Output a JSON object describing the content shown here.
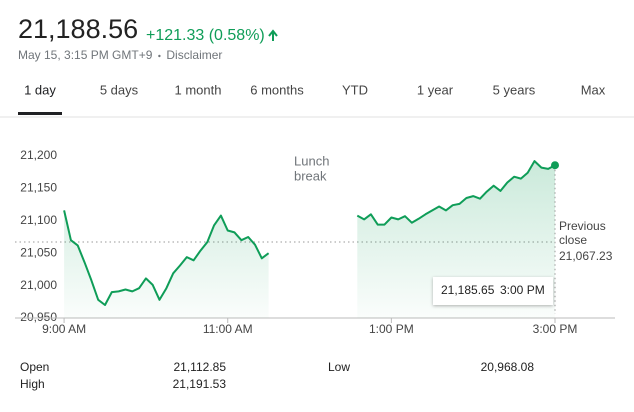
{
  "header": {
    "price": "21,188.56",
    "change": "+121.33 (0.58%)",
    "timestamp": "May 15, 3:15 PM GMT+9",
    "disclaimer": "Disclaimer"
  },
  "tabs": {
    "items": [
      "1 day",
      "5 days",
      "1 month",
      "6 months",
      "YTD",
      "1 year",
      "5 years",
      "Max"
    ],
    "active": 0
  },
  "chart_data": {
    "type": "line",
    "color": "#0f9d58",
    "x": [
      540,
      545,
      550,
      555,
      560,
      565,
      570,
      575,
      580,
      585,
      590,
      595,
      600,
      605,
      610,
      615,
      620,
      625,
      630,
      635,
      640,
      645,
      650,
      655,
      660,
      665,
      670,
      675,
      680,
      685,
      690,
      720,
      755,
      760,
      765,
      770,
      775,
      780,
      785,
      790,
      795,
      800,
      805,
      810,
      815,
      820,
      825,
      830,
      835,
      840,
      845,
      850,
      855,
      860,
      865,
      870,
      875,
      880,
      885,
      890,
      895,
      900
    ],
    "values": [
      21116,
      21070,
      21062,
      21036,
      21008,
      20978,
      20970,
      20990,
      20991,
      20994,
      20991,
      20996,
      21011,
      21001,
      20978,
      20996,
      21019,
      21031,
      21044,
      21039,
      21054,
      21067,
      21093,
      21108,
      21085,
      21082,
      21070,
      21075,
      21063,
      21042,
      21050,
      null,
      21108,
      21102,
      21110,
      21094,
      21094,
      21105,
      21102,
      21107,
      21097,
      21103,
      21110,
      21116,
      21122,
      21116,
      21124,
      21126,
      21135,
      21138,
      21134,
      21145,
      21154,
      21146,
      21159,
      21168,
      21165,
      21174,
      21192,
      21182,
      21180,
      21185.65
    ],
    "xlim": [
      504,
      944
    ],
    "xticks": [
      {
        "value": 540,
        "label": "9:00 AM"
      },
      {
        "value": 660,
        "label": "11:00 AM"
      },
      {
        "value": 780,
        "label": "1:00 PM"
      },
      {
        "value": 900,
        "label": "3:00 PM"
      }
    ],
    "ylim": [
      20950,
      21260
    ],
    "yticks": [
      {
        "value": 20950,
        "label": "20,950"
      },
      {
        "value": 21000,
        "label": "21,000"
      },
      {
        "value": 21050,
        "label": "21,050"
      },
      {
        "value": 21100,
        "label": "21,100"
      },
      {
        "value": 21150,
        "label": "21,150"
      },
      {
        "value": 21200,
        "label": "21,200"
      }
    ],
    "grid": false,
    "annotation": [
      "Lunch",
      "break"
    ],
    "previous_close": {
      "label": [
        "Previous",
        "close"
      ],
      "value": 21067.23,
      "value_label": "21,067.23"
    },
    "tooltip": {
      "value": 21185.65,
      "value_label": "21,185.65",
      "time": "3:00 PM"
    }
  },
  "stats": [
    {
      "label": "Open",
      "value": "21,112.85"
    },
    {
      "label": "High",
      "value": "21,191.53"
    },
    {
      "label": "Low",
      "value": "20,968.08"
    }
  ]
}
